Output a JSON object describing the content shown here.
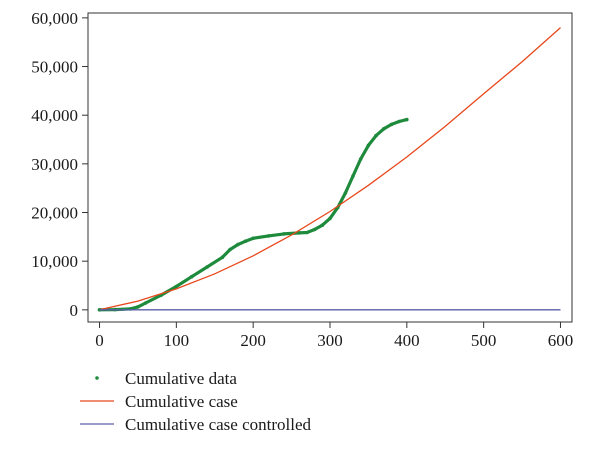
{
  "chart_data": {
    "type": "line",
    "title": "",
    "xlabel": "",
    "ylabel": "",
    "xlim": [
      -15,
      615
    ],
    "ylim": [
      -2500,
      61000
    ],
    "x_ticks": [
      0,
      100,
      200,
      300,
      400,
      500,
      600
    ],
    "x_tick_labels": [
      "0",
      "100",
      "200",
      "300",
      "400",
      "500",
      "600"
    ],
    "y_ticks": [
      0,
      10000,
      20000,
      30000,
      40000,
      50000,
      60000
    ],
    "y_tick_labels": [
      "0",
      "10,000",
      "20,000",
      "30,000",
      "40,000",
      "50,000",
      "60,000"
    ],
    "grid": false,
    "legend_position": "bottom-left",
    "series": [
      {
        "name": "Cumulative data",
        "style": "points",
        "color": "#1e8a3c",
        "x": [
          0,
          20,
          40,
          50,
          60,
          80,
          100,
          120,
          140,
          160,
          170,
          180,
          190,
          200,
          220,
          240,
          260,
          270,
          280,
          290,
          300,
          310,
          320,
          330,
          340,
          350,
          360,
          370,
          380,
          390,
          400
        ],
        "y": [
          0,
          50,
          200,
          600,
          1400,
          3000,
          4800,
          6800,
          8800,
          10800,
          12400,
          13400,
          14100,
          14700,
          15200,
          15600,
          15800,
          15900,
          16500,
          17400,
          18800,
          21000,
          24000,
          27500,
          31000,
          33800,
          35800,
          37200,
          38100,
          38700,
          39100
        ]
      },
      {
        "name": "Cumulative case",
        "style": "line",
        "color": "#e8481c",
        "x": [
          0,
          50,
          100,
          150,
          200,
          250,
          300,
          350,
          400,
          450,
          500,
          550,
          600
        ],
        "y": [
          0,
          1800,
          4300,
          7400,
          11100,
          15400,
          20200,
          25600,
          31400,
          37700,
          44400,
          51000,
          58000
        ]
      },
      {
        "name": "Cumulative case controlled",
        "style": "line",
        "color": "#5a5ea8",
        "x": [
          0,
          600
        ],
        "y": [
          0,
          0
        ]
      }
    ]
  }
}
